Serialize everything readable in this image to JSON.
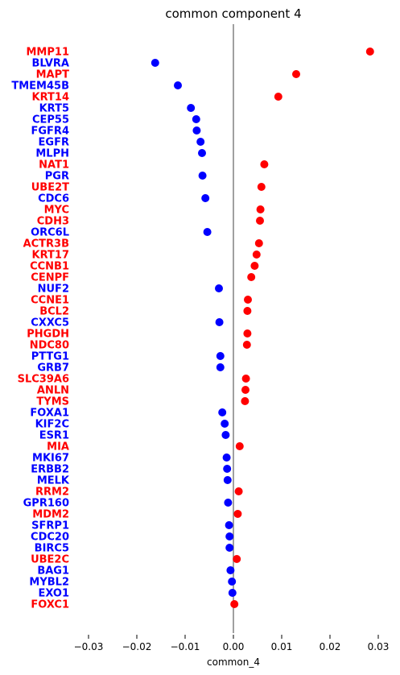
{
  "chart_data": {
    "type": "scatter",
    "title": "common component 4",
    "xlabel": "common_4",
    "ylabel": "",
    "xlim": [
      -0.033,
      0.033
    ],
    "xticks": [
      -0.03,
      -0.02,
      -0.01,
      0.0,
      0.01,
      0.02,
      0.03
    ],
    "xtick_labels": [
      "−0.03",
      "−0.02",
      "−0.01",
      "0.00",
      "0.01",
      "0.02",
      "0.03"
    ],
    "zero_line": true,
    "grid": false,
    "colors": {
      "positive": "#ff0000",
      "negative": "#0000ff",
      "zero_line": "#808080"
    },
    "points": [
      {
        "gene": "MMP11",
        "value": 0.0283
      },
      {
        "gene": "BLVRA",
        "value": -0.0162
      },
      {
        "gene": "MAPT",
        "value": 0.013
      },
      {
        "gene": "TMEM45B",
        "value": -0.0115
      },
      {
        "gene": "KRT14",
        "value": 0.0093
      },
      {
        "gene": "KRT5",
        "value": -0.0088
      },
      {
        "gene": "CEP55",
        "value": -0.0077
      },
      {
        "gene": "FGFR4",
        "value": -0.0076
      },
      {
        "gene": "EGFR",
        "value": -0.0068
      },
      {
        "gene": "MLPH",
        "value": -0.0065
      },
      {
        "gene": "NAT1",
        "value": 0.0064
      },
      {
        "gene": "PGR",
        "value": -0.0064
      },
      {
        "gene": "UBE2T",
        "value": 0.0058
      },
      {
        "gene": "CDC6",
        "value": -0.0058
      },
      {
        "gene": "MYC",
        "value": 0.0056
      },
      {
        "gene": "CDH3",
        "value": 0.0055
      },
      {
        "gene": "ORC6L",
        "value": -0.0054
      },
      {
        "gene": "ACTR3B",
        "value": 0.0053
      },
      {
        "gene": "KRT17",
        "value": 0.0048
      },
      {
        "gene": "CCNB1",
        "value": 0.0044
      },
      {
        "gene": "CENPF",
        "value": 0.0037
      },
      {
        "gene": "NUF2",
        "value": -0.003
      },
      {
        "gene": "CCNE1",
        "value": 0.003
      },
      {
        "gene": "BCL2",
        "value": 0.0029
      },
      {
        "gene": "CXXC5",
        "value": -0.0029
      },
      {
        "gene": "PHGDH",
        "value": 0.0029
      },
      {
        "gene": "NDC80",
        "value": 0.0028
      },
      {
        "gene": "PTTG1",
        "value": -0.0027
      },
      {
        "gene": "GRB7",
        "value": -0.0027
      },
      {
        "gene": "SLC39A6",
        "value": 0.0026
      },
      {
        "gene": "ANLN",
        "value": 0.0025
      },
      {
        "gene": "TYMS",
        "value": 0.0024
      },
      {
        "gene": "FOXA1",
        "value": -0.0023
      },
      {
        "gene": "KIF2C",
        "value": -0.0018
      },
      {
        "gene": "ESR1",
        "value": -0.0016
      },
      {
        "gene": "MIA",
        "value": 0.0013
      },
      {
        "gene": "MKI67",
        "value": -0.0014
      },
      {
        "gene": "ERBB2",
        "value": -0.0013
      },
      {
        "gene": "MELK",
        "value": -0.0012
      },
      {
        "gene": "RRM2",
        "value": 0.0011
      },
      {
        "gene": "GPR160",
        "value": -0.0011
      },
      {
        "gene": "MDM2",
        "value": 0.0009
      },
      {
        "gene": "SFRP1",
        "value": -0.0009
      },
      {
        "gene": "CDC20",
        "value": -0.0008
      },
      {
        "gene": "BIRC5",
        "value": -0.0008
      },
      {
        "gene": "UBE2C",
        "value": 0.0007
      },
      {
        "gene": "BAG1",
        "value": -0.0006
      },
      {
        "gene": "MYBL2",
        "value": -0.0003
      },
      {
        "gene": "EXO1",
        "value": -0.0002
      },
      {
        "gene": "FOXC1",
        "value": 0.0002
      }
    ]
  }
}
